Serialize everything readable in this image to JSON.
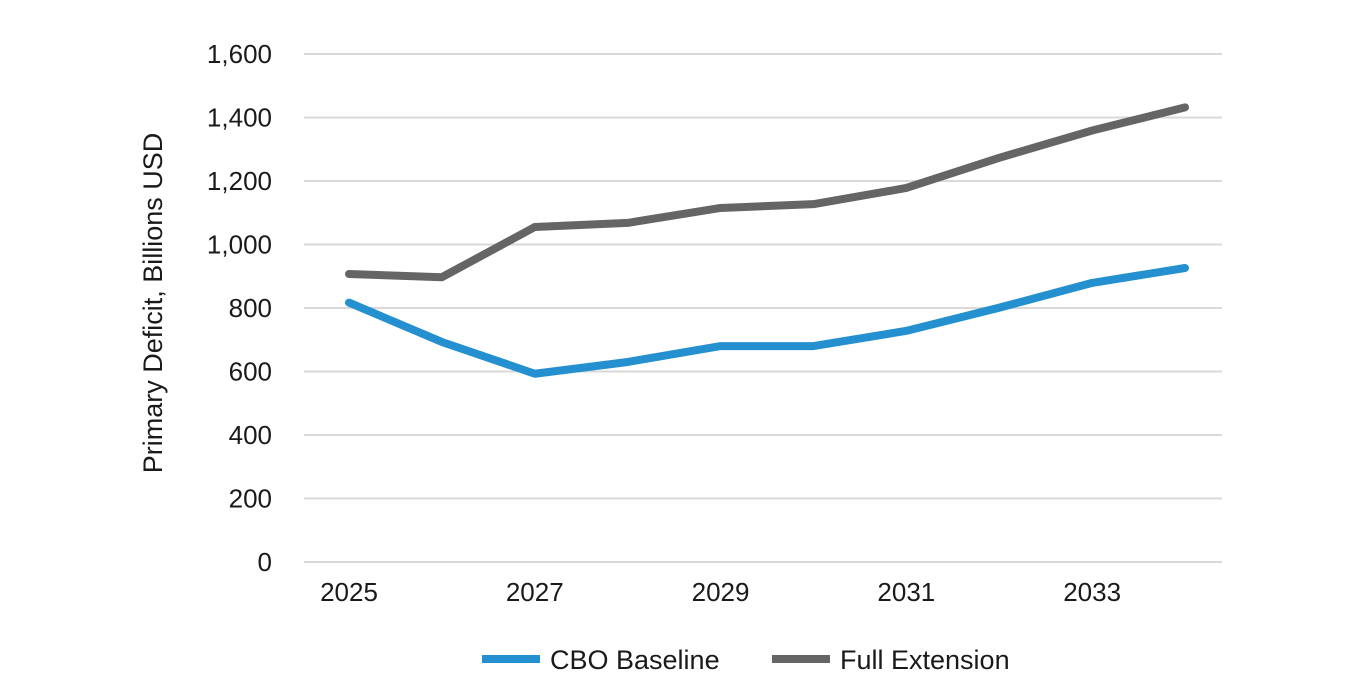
{
  "chart_data": {
    "type": "line",
    "title": "",
    "xlabel": "",
    "ylabel": "Primary Deficit, Billions USD",
    "ylim": [
      0,
      1600
    ],
    "yticks": [
      0,
      200,
      400,
      600,
      800,
      1000,
      1200,
      1400,
      1600
    ],
    "ytick_labels": [
      "0",
      "200",
      "400",
      "600",
      "800",
      "1,000",
      "1,200",
      "1,400",
      "1,600"
    ],
    "x": [
      2025,
      2026,
      2027,
      2028,
      2029,
      2030,
      2031,
      2032,
      2033,
      2034
    ],
    "xtick_labels": [
      "2025",
      "2027",
      "2029",
      "2031",
      "2033"
    ],
    "xtick_values": [
      2025,
      2027,
      2029,
      2031,
      2033
    ],
    "grid": true,
    "legend_position": "bottom",
    "series": [
      {
        "name": "CBO Baseline",
        "color": "#2490D0",
        "values": [
          817,
          693,
          593,
          630,
          680,
          680,
          728,
          801,
          879,
          926
        ]
      },
      {
        "name": "Full Extension",
        "color": "#646564",
        "values": [
          907,
          897,
          1055,
          1068,
          1115,
          1127,
          1178,
          1273,
          1359,
          1432
        ]
      }
    ]
  }
}
